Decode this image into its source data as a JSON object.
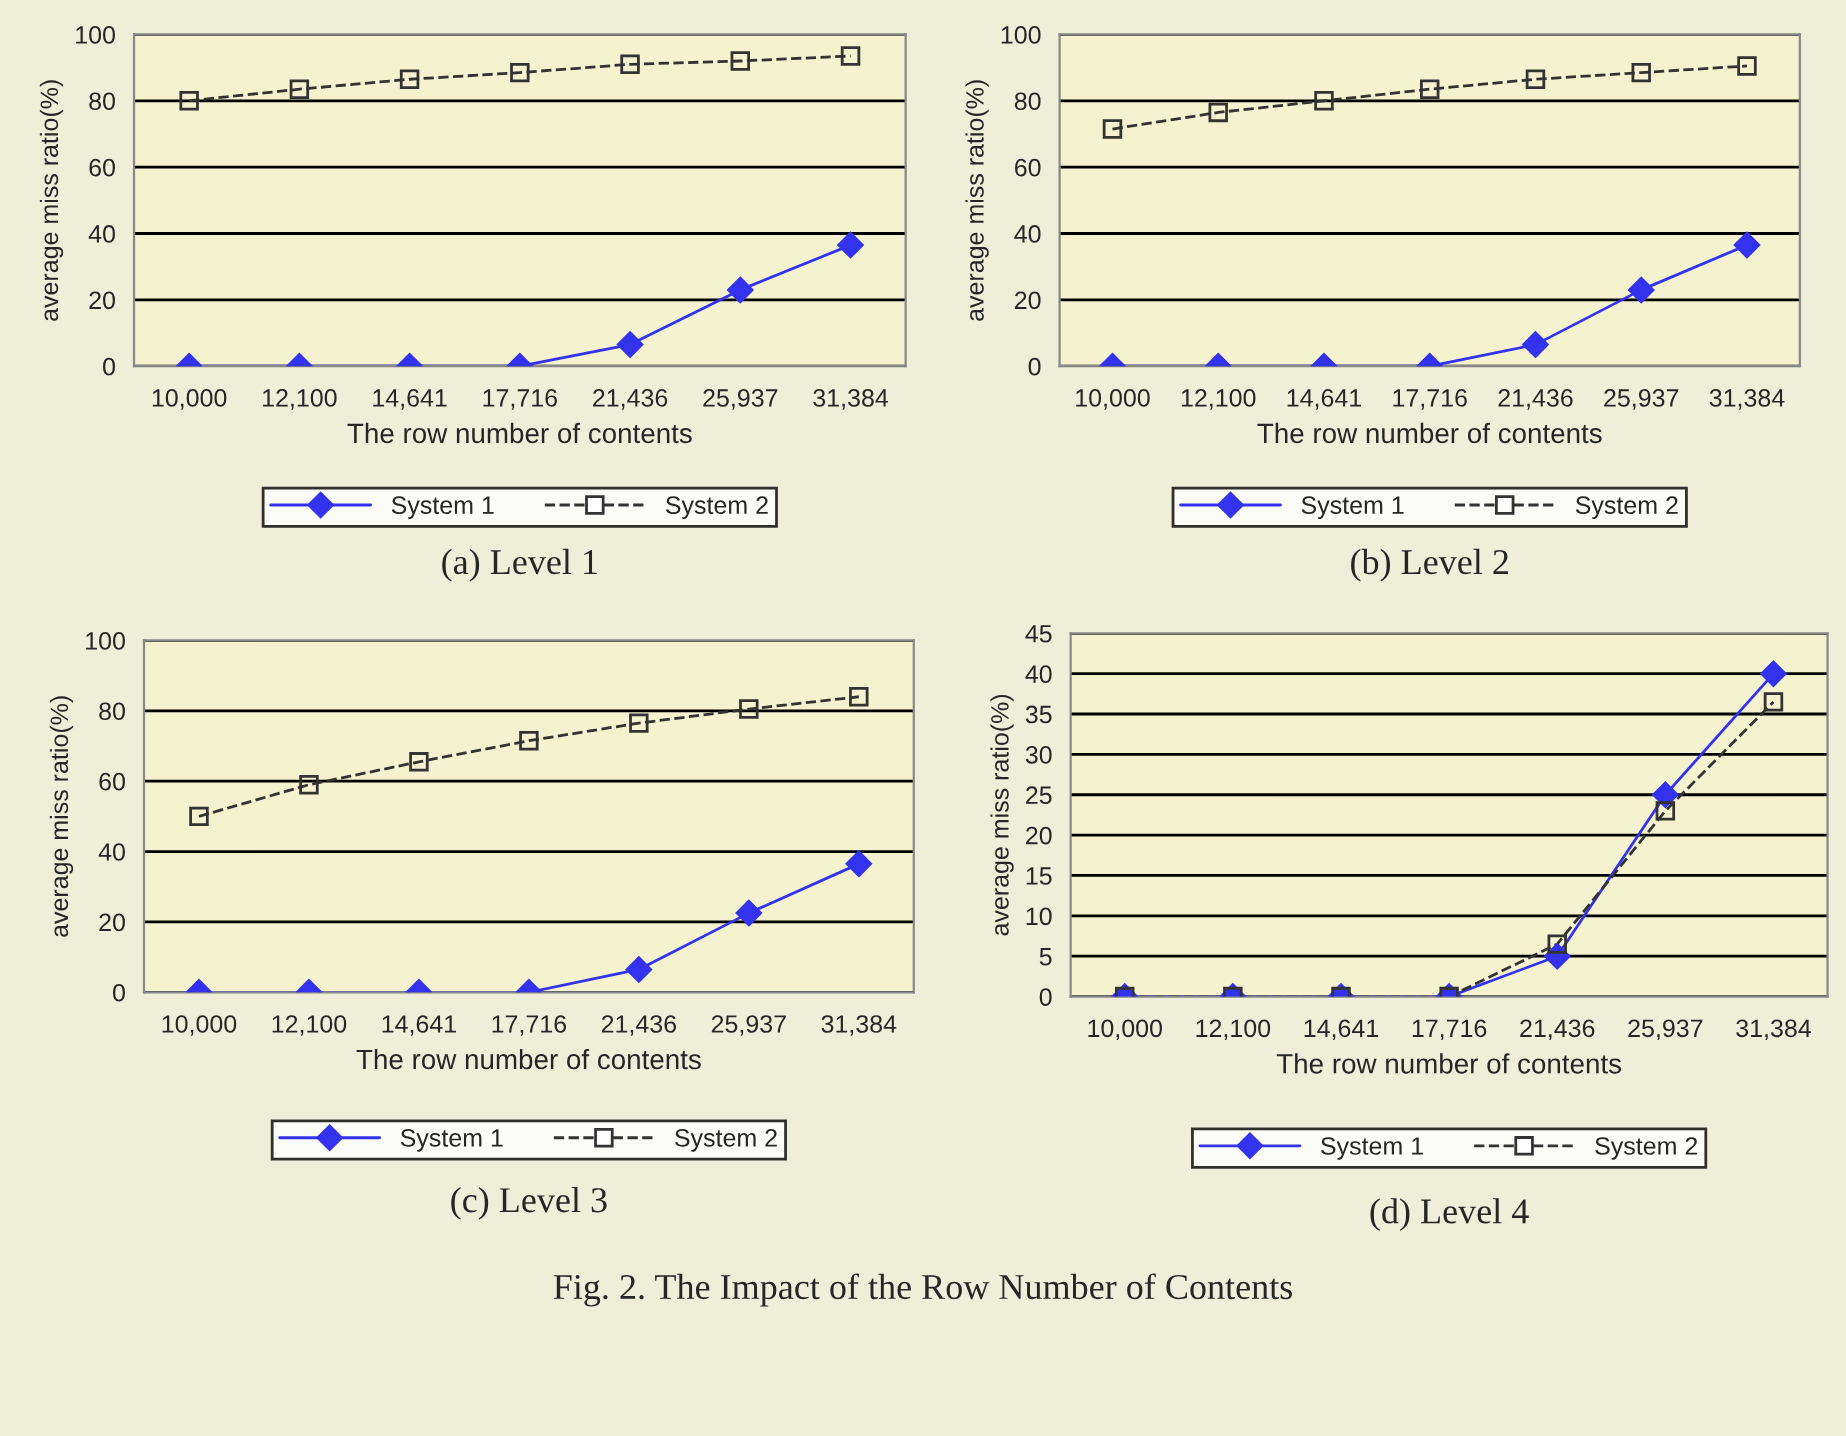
{
  "chart_data": [
    {
      "type": "line",
      "title": "(a) Level 1",
      "xlabel": "The row number of contents",
      "ylabel": "average miss ratio(%)",
      "categories": [
        "10,000",
        "12,100",
        "14,641",
        "17,716",
        "21,436",
        "25,937",
        "31,384"
      ],
      "ylim": [
        0,
        100
      ],
      "yticks": [
        0,
        20,
        40,
        60,
        80,
        100
      ],
      "grid": "y",
      "legend": "bottom",
      "series": [
        {
          "name": "System 1",
          "color": "#3333ee",
          "marker": "diamond",
          "line_style": "solid",
          "values": [
            0,
            0,
            0,
            0,
            6.5,
            23,
            36.5
          ]
        },
        {
          "name": "System 2",
          "color": "#333333",
          "marker": "square",
          "line_style": "dashed",
          "values": [
            80,
            83.5,
            86.5,
            88.5,
            91,
            92,
            93.5
          ]
        }
      ]
    },
    {
      "type": "line",
      "title": "(b) Level 2",
      "xlabel": "The row number of contents",
      "ylabel": "average miss ratio(%)",
      "categories": [
        "10,000",
        "12,100",
        "14,641",
        "17,716",
        "21,436",
        "25,937",
        "31,384"
      ],
      "ylim": [
        0,
        100
      ],
      "yticks": [
        0,
        20,
        40,
        60,
        80,
        100
      ],
      "grid": "y",
      "legend": "bottom",
      "series": [
        {
          "name": "System 1",
          "color": "#3333ee",
          "marker": "diamond",
          "line_style": "solid",
          "values": [
            0,
            0,
            0,
            0,
            6.5,
            23,
            36.5
          ]
        },
        {
          "name": "System 2",
          "color": "#333333",
          "marker": "square",
          "line_style": "dashed",
          "values": [
            71.5,
            76.5,
            80,
            83.5,
            86.5,
            88.5,
            90.5
          ]
        }
      ]
    },
    {
      "type": "line",
      "title": "(c) Level 3",
      "xlabel": "The row number of contents",
      "ylabel": "average miss ratio(%)",
      "categories": [
        "10,000",
        "12,100",
        "14,641",
        "17,716",
        "21,436",
        "25,937",
        "31,384"
      ],
      "ylim": [
        0,
        100
      ],
      "yticks": [
        0,
        20,
        40,
        60,
        80,
        100
      ],
      "grid": "y",
      "legend": "bottom",
      "series": [
        {
          "name": "System 1",
          "color": "#3333ee",
          "marker": "diamond",
          "line_style": "solid",
          "values": [
            0,
            0,
            0,
            0,
            6.5,
            22.5,
            36.5
          ]
        },
        {
          "name": "System 2",
          "color": "#333333",
          "marker": "square",
          "line_style": "dashed",
          "values": [
            50,
            59,
            65.5,
            71.5,
            76.5,
            80.5,
            84
          ]
        }
      ]
    },
    {
      "type": "line",
      "title": "(d) Level 4",
      "xlabel": "The row number of contents",
      "ylabel": "average miss ratio(%)",
      "categories": [
        "10,000",
        "12,100",
        "14,641",
        "17,716",
        "21,436",
        "25,937",
        "31,384"
      ],
      "ylim": [
        0,
        45
      ],
      "yticks": [
        0,
        5,
        10,
        15,
        20,
        25,
        30,
        35,
        40,
        45
      ],
      "grid": "y",
      "legend": "bottom",
      "annotations": [
        "Fig. 2. The Impact of the Row Number of Contents"
      ],
      "series": [
        {
          "name": "System 1",
          "color": "#3333ee",
          "marker": "diamond",
          "line_style": "solid",
          "values": [
            0,
            0,
            0,
            0,
            5,
            25,
            40
          ]
        },
        {
          "name": "System 2",
          "color": "#333333",
          "marker": "square",
          "line_style": "dashed",
          "values": [
            0,
            0,
            0,
            0,
            6.5,
            23,
            36.5
          ]
        }
      ]
    }
  ]
}
